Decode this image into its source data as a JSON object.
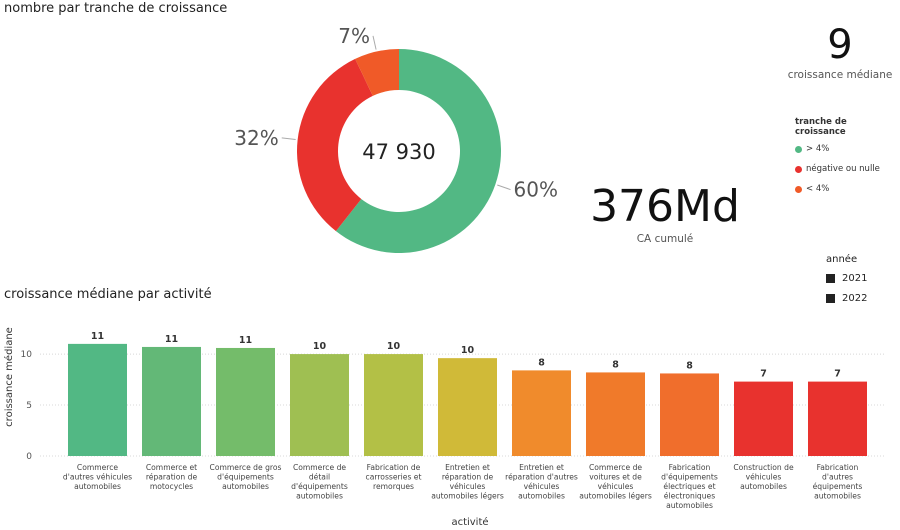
{
  "donut": {
    "title": "nombre par tranche de croissance",
    "center_value": "47 930",
    "chart_data": {
      "type": "pie",
      "categories": [
        "> 4%",
        "négative ou nulle",
        "< 4%"
      ],
      "values": [
        60,
        32,
        7
      ],
      "labels": [
        "60%",
        "32%",
        "7%"
      ],
      "colors": [
        "#52b884",
        "#e8322e",
        "#f05a28"
      ]
    }
  },
  "kpi_median": {
    "value": "9",
    "label": "croissance médiane"
  },
  "kpi_ca": {
    "value": "376Md",
    "label": "CA cumulé"
  },
  "legend": {
    "title": "tranche de croissance",
    "items": [
      {
        "label": "> 4%",
        "color": "#52b884"
      },
      {
        "label": "négative ou nulle",
        "color": "#e8322e"
      },
      {
        "label": "< 4%",
        "color": "#f05a28"
      }
    ]
  },
  "year_filter": {
    "title": "année",
    "items": [
      "2021",
      "2022"
    ]
  },
  "chart_data": {
    "type": "bar",
    "title": "croissance médiane par activité",
    "xlabel": "activité",
    "ylabel": "croissance médiane",
    "ylim": [
      0,
      12
    ],
    "yticks": [
      0,
      5,
      10
    ],
    "categories": [
      [
        "Commerce",
        "d'autres véhicules",
        "automobiles"
      ],
      [
        "Commerce et",
        "réparation de",
        "motocycles"
      ],
      [
        "Commerce de gros",
        "d'équipements",
        "automobiles"
      ],
      [
        "Commerce de",
        "détail",
        "d'équipements",
        "automobiles"
      ],
      [
        "Fabrication de",
        "carrosseries et",
        "remorques"
      ],
      [
        "Entretien et",
        "réparation de",
        "véhicules",
        "automobiles légers"
      ],
      [
        "Entretien et",
        "réparation d'autres",
        "véhicules",
        "automobiles"
      ],
      [
        "Commerce de",
        "voitures et de",
        "véhicules",
        "automobiles légers"
      ],
      [
        "Fabrication",
        "d'équipements",
        "électriques et",
        "électroniques",
        "automobiles"
      ],
      [
        "Construction de",
        "véhicules",
        "automobiles"
      ],
      [
        "Fabrication",
        "d'autres",
        "équipements",
        "automobiles"
      ]
    ],
    "values": [
      11.0,
      10.7,
      10.6,
      10.0,
      10.0,
      9.6,
      8.4,
      8.2,
      8.1,
      7.3,
      7.3
    ],
    "data_labels": [
      "11",
      "11",
      "11",
      "10",
      "10",
      "10",
      "8",
      "8",
      "8",
      "7",
      "7"
    ],
    "colors": [
      "#52b884",
      "#63b877",
      "#74bc6a",
      "#9fbf52",
      "#b3c046",
      "#d0ba38",
      "#f08b2c",
      "#f07a2a",
      "#f06e2c",
      "#e8322e",
      "#e8322e"
    ]
  }
}
